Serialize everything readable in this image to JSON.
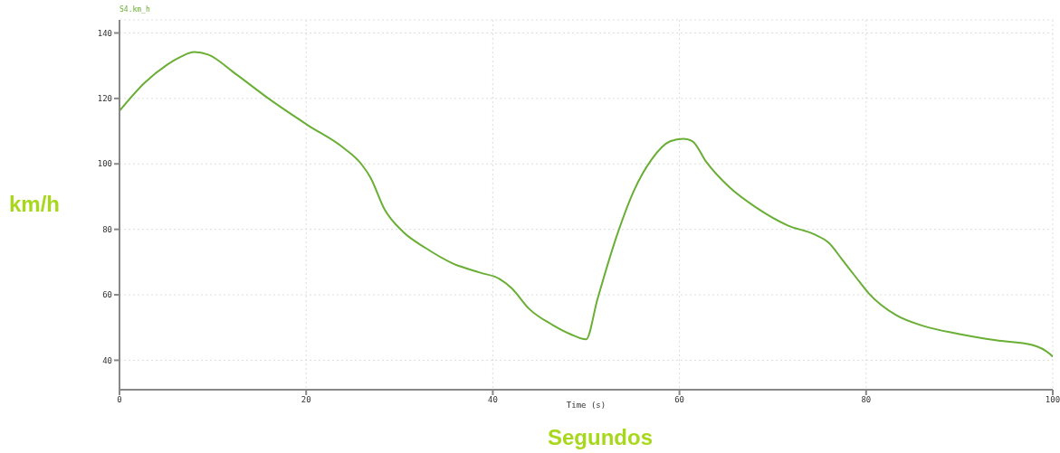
{
  "chart_data": {
    "type": "line",
    "title": "S4.km_h",
    "xlabel": "Time (s)",
    "ylabel": "km/h",
    "annotations": [
      "Segundos"
    ],
    "xlim": [
      0,
      100
    ],
    "xticks": [
      0,
      20,
      40,
      60,
      80,
      100
    ],
    "ylim": [
      31,
      144
    ],
    "yticks": [
      40,
      60,
      80,
      100,
      120,
      140
    ],
    "grid": true,
    "marker": "none",
    "line_style": "solid",
    "series": [
      {
        "color": "#6aaf35",
        "x": [
          0,
          2.7,
          5.1,
          6.6,
          8.0,
          9.5,
          12.4,
          16.3,
          20.2,
          24.0,
          25.9,
          26.9,
          28.4,
          30.4,
          32.8,
          35.7,
          38.6,
          40.7,
          42.0,
          43.9,
          46.4,
          48.3,
          50.0,
          51.2,
          53.2,
          55.1,
          57.0,
          59.0,
          60.4,
          61.4,
          62.9,
          65.3,
          68.2,
          71.6,
          74.5,
          76.0,
          77.4,
          78.9,
          80.3,
          83.2,
          86.1,
          90.0,
          93.9,
          97.8,
          99.7,
          100
        ],
        "values": [
          116.2,
          124.8,
          130.3,
          132.8,
          134.2,
          133.4,
          127.6,
          119.3,
          111.8,
          104.9,
          100,
          95.8,
          86.1,
          79.2,
          74.3,
          69.6,
          66.8,
          64.9,
          62.1,
          55.7,
          50.8,
          48.0,
          46.4,
          58.5,
          77.3,
          91.7,
          101.3,
          106.9,
          107.7,
          106.9,
          100.5,
          93.0,
          86.7,
          81.2,
          78.4,
          75.9,
          70.9,
          65.4,
          60.4,
          53.8,
          50.5,
          48.0,
          46.1,
          44.7,
          41.9,
          41.1
        ]
      }
    ]
  }
}
